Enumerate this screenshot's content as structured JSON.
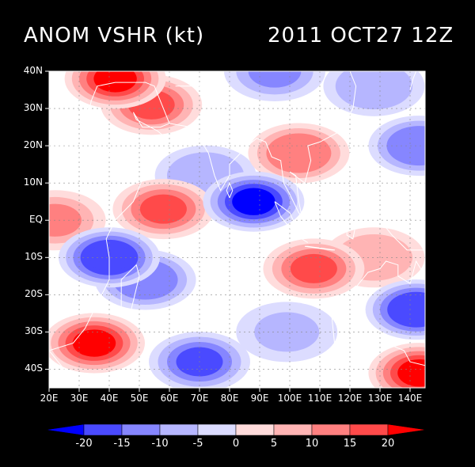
{
  "title": {
    "left": "ANOM VSHR (kt)",
    "right": "2011 OCT27 12Z"
  },
  "chart_data": {
    "type": "heatmap",
    "variable": "ANOM VSHR",
    "units": "kt",
    "valid_time": "2011 OCT27 12Z",
    "lon_range": [
      20,
      145
    ],
    "lat_range": [
      -45,
      40
    ],
    "lon_ticks": [
      "20E",
      "30E",
      "40E",
      "50E",
      "60E",
      "70E",
      "80E",
      "90E",
      "100E",
      "110E",
      "120E",
      "130E",
      "140E"
    ],
    "lat_ticks": [
      "40N",
      "30N",
      "20N",
      "10N",
      "EQ",
      "10S",
      "20S",
      "30S",
      "40S"
    ],
    "contour_levels": [
      -20,
      -15,
      -10,
      -5,
      0,
      5,
      10,
      15,
      20
    ],
    "level_labels": [
      "-20",
      "-15",
      "-10",
      "-5",
      "0",
      "5",
      "10",
      "15",
      "20"
    ],
    "colors": [
      "#0000ff",
      "#4a4aff",
      "#8686ff",
      "#b6b6ff",
      "#dcdcff",
      "#ffdcdc",
      "#ffb4b4",
      "#ff8080",
      "#ff4a4a",
      "#ff0000"
    ],
    "anomaly_centers": [
      {
        "lon": 42,
        "lat": 38,
        "value": 20
      },
      {
        "lon": 54,
        "lat": 31,
        "value": 16
      },
      {
        "lon": 103,
        "lat": 18,
        "value": 14
      },
      {
        "lon": 58,
        "lat": 3,
        "value": 16
      },
      {
        "lon": 22,
        "lat": 0,
        "value": 10
      },
      {
        "lon": 108,
        "lat": -13,
        "value": 15
      },
      {
        "lon": 128,
        "lat": -10,
        "value": 8
      },
      {
        "lon": 35,
        "lat": -33,
        "value": 22
      },
      {
        "lon": 143,
        "lat": -41,
        "value": 20
      },
      {
        "lon": 88,
        "lat": 5,
        "value": -22
      },
      {
        "lon": 72,
        "lat": 12,
        "value": -10
      },
      {
        "lon": 40,
        "lat": -10,
        "value": -20
      },
      {
        "lon": 52,
        "lat": -16,
        "value": -15
      },
      {
        "lon": 142,
        "lat": -24,
        "value": -20
      },
      {
        "lon": 70,
        "lat": -38,
        "value": -16
      },
      {
        "lon": 95,
        "lat": 40,
        "value": -12
      },
      {
        "lon": 128,
        "lat": 36,
        "value": -9
      },
      {
        "lon": 143,
        "lat": 20,
        "value": -15
      },
      {
        "lon": 99,
        "lat": -30,
        "value": -6
      }
    ]
  }
}
